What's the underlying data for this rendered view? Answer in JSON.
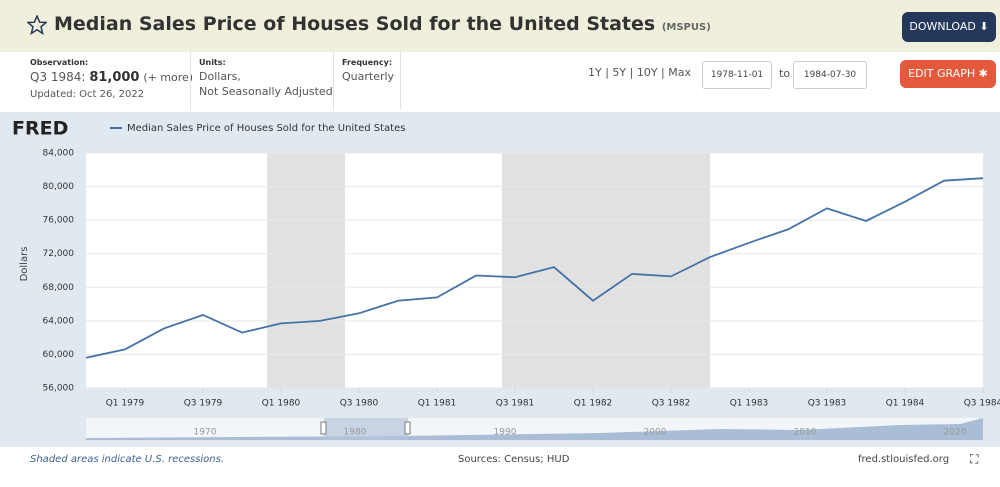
{
  "header": {
    "title": "Median Sales Price of Houses Sold for the United States",
    "series_id": "(MSPUS)",
    "download": "DOWNLOAD"
  },
  "info": {
    "observation_label": "Observation:",
    "observation_period": "Q3 1984:",
    "observation_value": "81,000",
    "more": "(+ more)",
    "updated": "Updated: Oct 26, 2022",
    "units_label": "Units:",
    "units": [
      "Dollars,",
      "Not Seasonally Adjusted"
    ],
    "frequency_label": "Frequency:",
    "frequency": "Quarterly"
  },
  "controls": {
    "ranges": "1Y | 5Y | 10Y | Max",
    "start": "1978-11-01",
    "to": "to",
    "end": "1984-07-30",
    "edit": "EDIT GRAPH"
  },
  "chart_data": {
    "type": "line",
    "logo": "FRED",
    "ylabel": "Dollars",
    "grid": true,
    "categories": [
      null,
      "Q1 1979",
      null,
      "Q3 1979",
      null,
      "Q1 1980",
      null,
      "Q3 1980",
      null,
      "Q1 1981",
      null,
      "Q3 1981",
      null,
      "Q1 1982",
      null,
      "Q3 1982",
      null,
      "Q1 1983",
      null,
      "Q3 1983",
      null,
      "Q1 1984",
      null,
      "Q3 1984"
    ],
    "series": [
      {
        "name": "Median Sales Price of Houses Sold for the United States",
        "color": "#4572a7",
        "values": [
          59600,
          60600,
          63100,
          64700,
          62600,
          63700,
          64000,
          64900,
          66400,
          66800,
          69400,
          69200,
          70400,
          66400,
          69600,
          69300,
          71600,
          73300,
          74900,
          77400,
          75900,
          78200,
          80700,
          81000
        ]
      }
    ],
    "ylim": [
      56000,
      84000
    ],
    "yticks": [
      {
        "value": 56000,
        "label": "56,000"
      },
      {
        "value": 60000,
        "label": "60,000"
      },
      {
        "value": 64000,
        "label": "64,000"
      },
      {
        "value": 68000,
        "label": "68,000"
      },
      {
        "value": 72000,
        "label": "72,000"
      },
      {
        "value": 76000,
        "label": "76,000"
      },
      {
        "value": 80000,
        "label": "80,000"
      },
      {
        "value": 84000,
        "label": "84,000"
      }
    ]
  },
  "navigator": {
    "labels": [
      "1970",
      "1980",
      "1990",
      "2000",
      "2010",
      "2020"
    ]
  },
  "footer": {
    "note": "Shaded areas indicate U.S. recessions.",
    "sources": "Sources: Census; HUD",
    "site": "fred.stlouisfed.org"
  }
}
